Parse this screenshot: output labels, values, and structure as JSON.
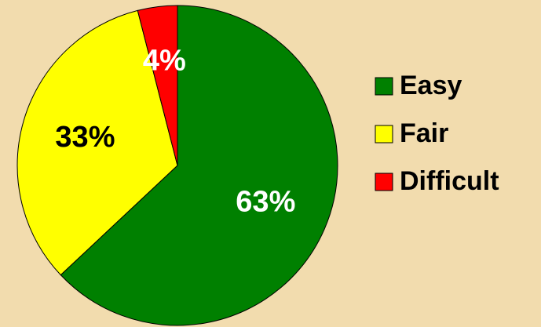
{
  "chart_data": {
    "type": "pie",
    "categories": [
      "Easy",
      "Fair",
      "Difficult"
    ],
    "values": [
      63,
      33,
      4
    ],
    "value_labels": [
      "63%",
      "33%",
      "4%"
    ],
    "colors": [
      "#008000",
      "#ffff00",
      "#ff0000"
    ],
    "value_label_colors": [
      "#ffffff",
      "#000000",
      "#ffffff"
    ],
    "legend": "right"
  }
}
